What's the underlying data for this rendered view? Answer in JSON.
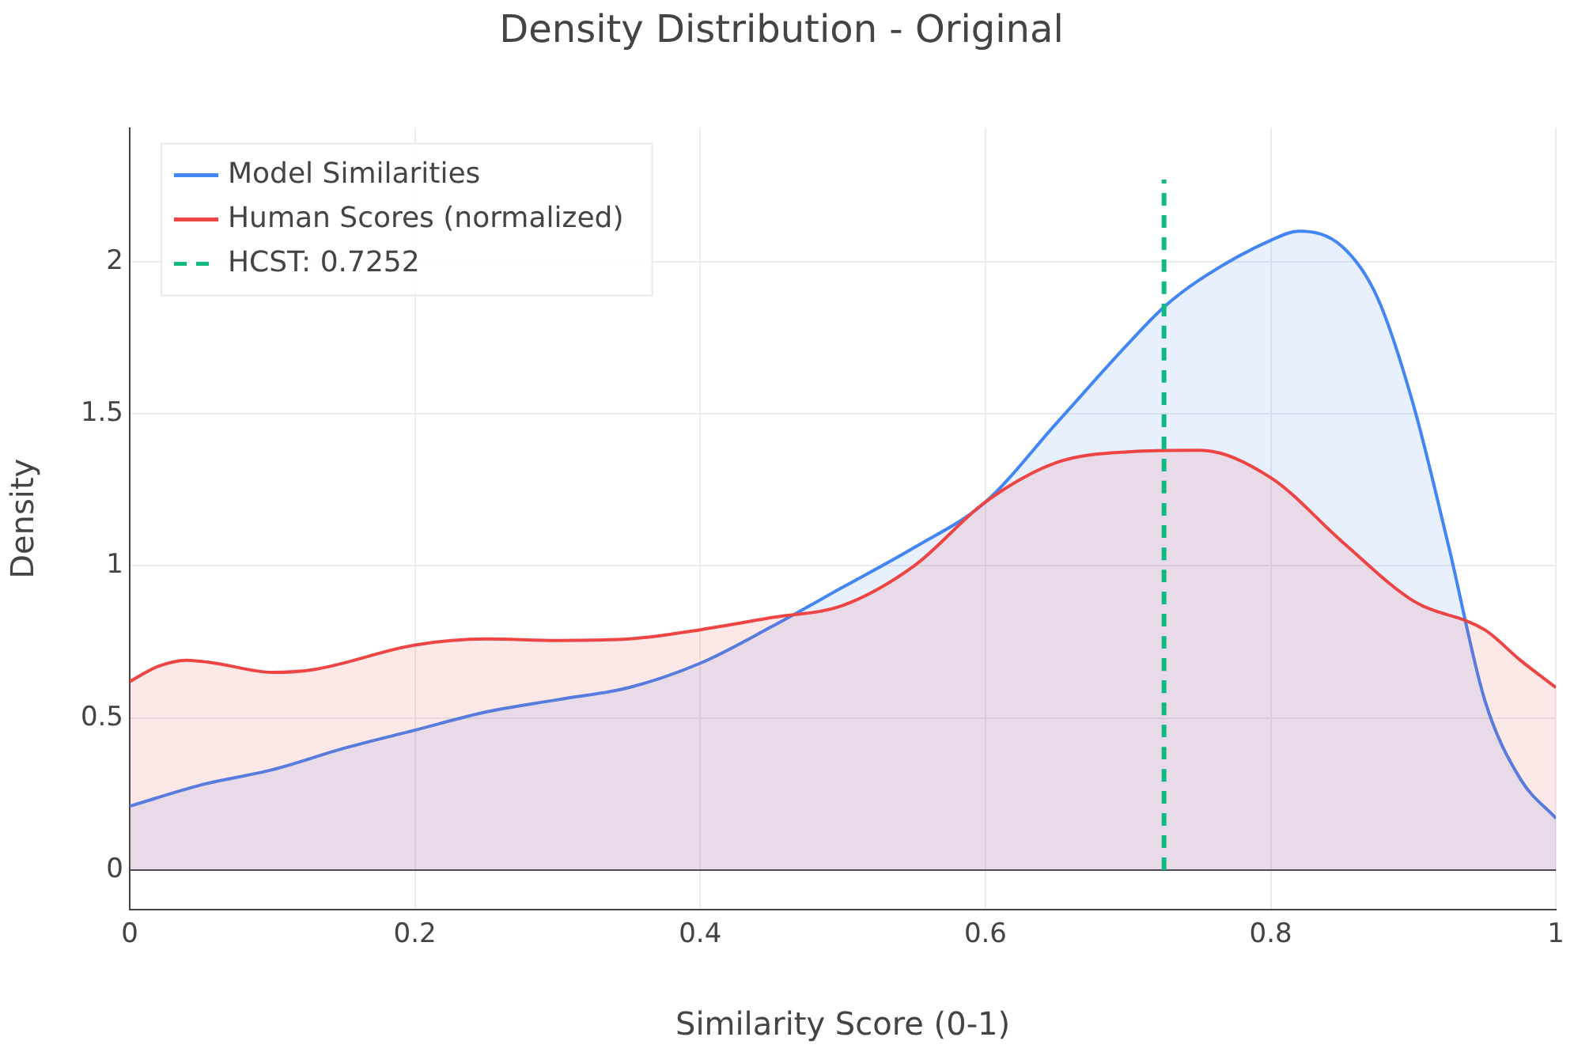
{
  "chart_data": {
    "type": "area",
    "title": "Density Distribution - Original",
    "xlabel": "Similarity Score (0-1)",
    "ylabel": "Density",
    "xlim": [
      0,
      1
    ],
    "xticks": [
      0,
      0.2,
      0.4,
      0.6,
      0.8,
      1
    ],
    "ylim": [
      -0.13,
      2.44
    ],
    "yticks": [
      0,
      0.5,
      1,
      1.5,
      2
    ],
    "grid": true,
    "legend": "top left",
    "marker": "none",
    "series": [
      {
        "name": "Model Similarities",
        "color": "#4285f4",
        "x": [
          0,
          0.05,
          0.1,
          0.15,
          0.2,
          0.25,
          0.3,
          0.35,
          0.4,
          0.45,
          0.5,
          0.55,
          0.6,
          0.65,
          0.7,
          0.725,
          0.75,
          0.8,
          0.82,
          0.85,
          0.875,
          0.9,
          0.925,
          0.95,
          0.975,
          1
        ],
        "values": [
          0.21,
          0.28,
          0.33,
          0.4,
          0.46,
          0.52,
          0.56,
          0.6,
          0.68,
          0.8,
          0.93,
          1.06,
          1.21,
          1.47,
          1.73,
          1.85,
          1.94,
          2.07,
          2.1,
          2.05,
          1.88,
          1.53,
          1.06,
          0.56,
          0.3,
          0.17
        ]
      },
      {
        "name": "Human Scores (normalized)",
        "color": "#ef4444",
        "x": [
          0,
          0.02,
          0.04,
          0.06,
          0.1,
          0.13,
          0.2,
          0.25,
          0.3,
          0.35,
          0.4,
          0.45,
          0.5,
          0.55,
          0.6,
          0.65,
          0.7,
          0.75,
          0.8,
          0.85,
          0.9,
          0.95,
          0.975,
          1
        ],
        "values": [
          0.62,
          0.67,
          0.69,
          0.68,
          0.65,
          0.66,
          0.74,
          0.76,
          0.755,
          0.76,
          0.79,
          0.83,
          0.87,
          1.0,
          1.21,
          1.34,
          1.375,
          1.38,
          1.29,
          1.08,
          0.885,
          0.79,
          0.69,
          0.6
        ]
      },
      {
        "name": "HCST: 0.7252",
        "type": "line",
        "line_style": "dashed",
        "color": "#10b981",
        "x": [
          0.7252,
          0.7252
        ],
        "values": [
          0,
          2.27
        ]
      }
    ]
  }
}
